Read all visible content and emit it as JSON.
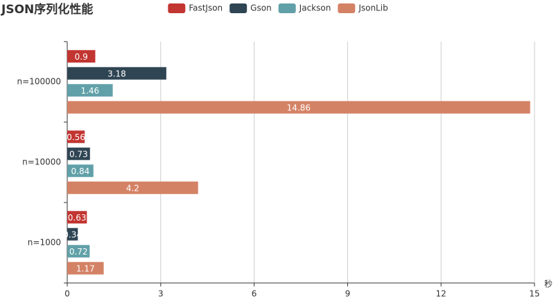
{
  "chart_data": {
    "type": "bar",
    "orientation": "horizontal",
    "title": "JSON序列化性能",
    "categories": [
      "n=1000",
      "n=10000",
      "n=100000"
    ],
    "series": [
      {
        "name": "FastJson",
        "color": "#c23531",
        "values": [
          0.63,
          0.56,
          0.9
        ]
      },
      {
        "name": "Gson",
        "color": "#2f4554",
        "values": [
          0.34,
          0.73,
          3.18
        ]
      },
      {
        "name": "Jackson",
        "color": "#61a0a8",
        "values": [
          0.72,
          0.84,
          1.46
        ]
      },
      {
        "name": "JsonLib",
        "color": "#d48265",
        "values": [
          1.17,
          4.2,
          14.86
        ]
      }
    ],
    "xlabel": "秒",
    "xlim": [
      0,
      15
    ],
    "xticks": [
      0,
      3,
      6,
      9,
      12,
      15
    ],
    "grid": true
  }
}
